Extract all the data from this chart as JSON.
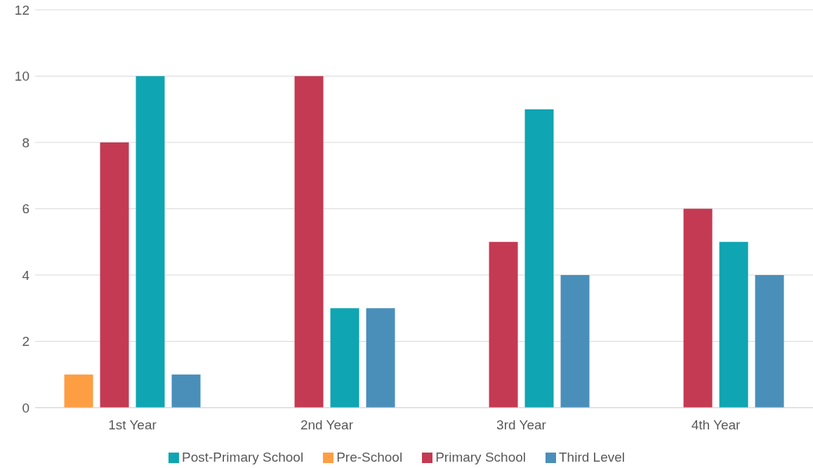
{
  "chart_data": {
    "type": "bar",
    "categories": [
      "1st Year",
      "2nd Year",
      "3rd Year",
      "4th Year"
    ],
    "series": [
      {
        "name": "Pre-School",
        "color": "#fd9e43",
        "values": [
          1,
          null,
          null,
          null
        ]
      },
      {
        "name": "Primary School",
        "color": "#c43a53",
        "values": [
          8,
          10,
          5,
          6
        ]
      },
      {
        "name": "Post-Primary School",
        "color": "#0fa5b2",
        "values": [
          10,
          3,
          9,
          5
        ]
      },
      {
        "name": "Third Level",
        "color": "#4a8fba",
        "values": [
          1,
          3,
          4,
          4
        ]
      }
    ],
    "ylim": [
      0,
      12
    ],
    "yticks": [
      0,
      2,
      4,
      6,
      8,
      10,
      12
    ],
    "grid": "y",
    "legend": "bottom"
  }
}
